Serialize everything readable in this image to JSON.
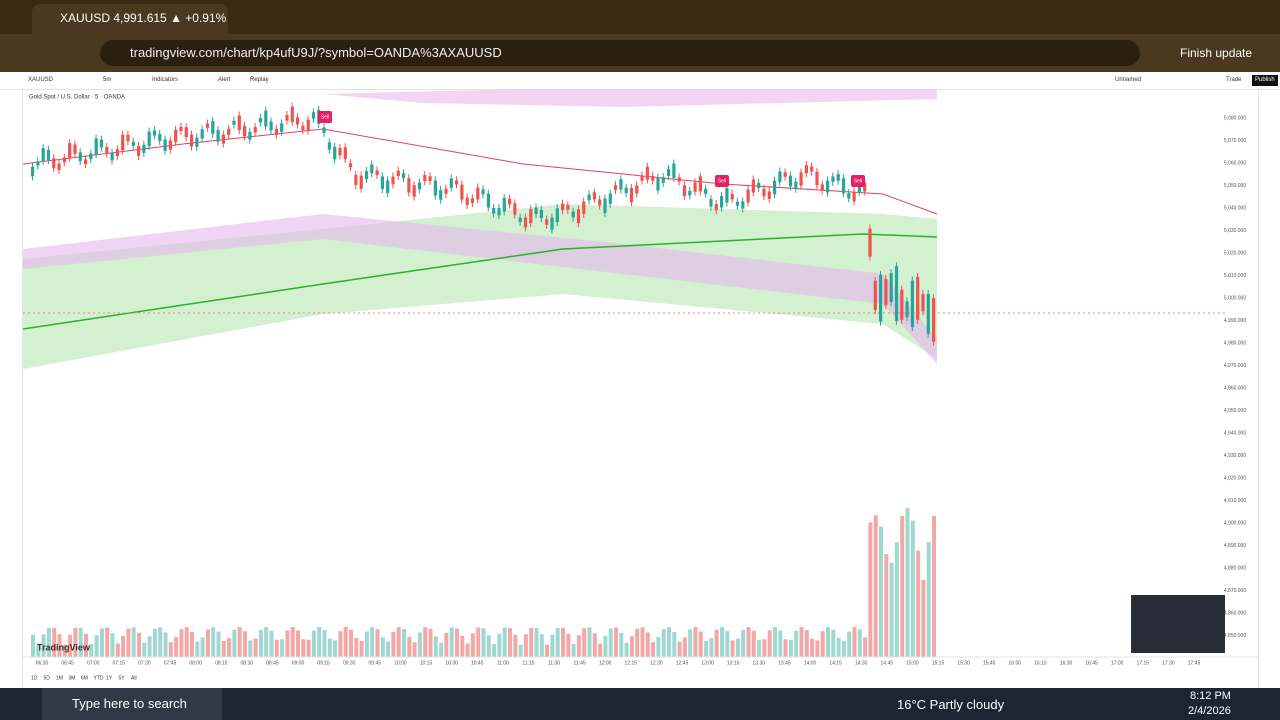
{
  "browser": {
    "tab_title": "XAUUSD 4,991.615 ▲ +0.91%",
    "url": "tradingview.com/chart/kp4ufU9J/?symbol=OANDA%3AXAUUSD",
    "update_button": "Finish update"
  },
  "toolbar": {
    "symbol": "XAUUSD",
    "interval": "5m",
    "items": [
      "Indicators",
      "Alert",
      "Replay"
    ],
    "layout": "Unnamed",
    "trade": "Trade",
    "publish": "Publish"
  },
  "chart": {
    "legend": "Gold Spot / U.S. Dollar · 5 · OANDA",
    "signals": [
      "Sell",
      "Sell",
      "Sell"
    ],
    "price_labels": [
      "5,080.000",
      "5,070.000",
      "5,060.000",
      "5,050.000",
      "5,040.000",
      "5,030.000",
      "5,020.000",
      "5,010.000",
      "5,000.000",
      "4,990.000",
      "4,980.000",
      "4,970.000",
      "4,960.000",
      "4,950.000",
      "4,940.000",
      "4,930.000",
      "4,920.000",
      "4,910.000",
      "4,900.000",
      "4,890.000",
      "4,880.000",
      "4,870.000",
      "4,860.000",
      "4,850.000"
    ],
    "time_labels": [
      "06:30",
      "06:45",
      "07:00",
      "07:15",
      "07:30",
      "07:45",
      "08:00",
      "08:15",
      "08:30",
      "08:45",
      "09:00",
      "09:15",
      "09:30",
      "09:45",
      "10:00",
      "10:15",
      "10:30",
      "10:45",
      "11:00",
      "11:15",
      "11:30",
      "11:45",
      "12:00",
      "12:15",
      "12:30",
      "12:45",
      "13:00",
      "13:15",
      "13:30",
      "13:45",
      "14:00",
      "14:15",
      "14:30",
      "14:45",
      "15:00",
      "15:15",
      "15:30",
      "15:45",
      "16:00",
      "16:15",
      "16:30",
      "16:45",
      "17:00",
      "17:15",
      "17:30",
      "17:45"
    ],
    "watermark": "TradingView",
    "ranges": [
      "1D",
      "5D",
      "1M",
      "3M",
      "6M",
      "YTD",
      "1Y",
      "5Y",
      "All"
    ]
  },
  "taskbar": {
    "search": "Type here to search",
    "weather": "16°C Partly cloudy",
    "time": "8:12 PM",
    "date": "2/4/2026"
  }
}
